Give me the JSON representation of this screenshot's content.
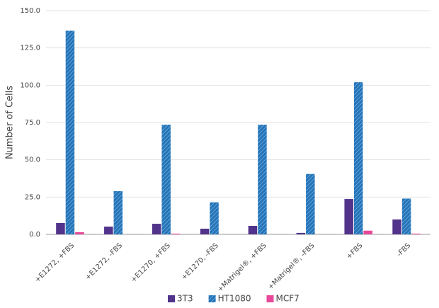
{
  "chart_data": {
    "type": "bar",
    "y_label": "Number of Cells",
    "categories": [
      "+E1272, +FBS",
      "+E1272, -FBS",
      "+E1270, +FBS",
      "+E1270, -FBS",
      "+Matrigel®, +FBS",
      "+Matrigel®, -FBS",
      "+FBS",
      "-FBS"
    ],
    "series": [
      {
        "name": "3T3",
        "color": "#51338b",
        "values": [
          7.6,
          5.2,
          7.1,
          3.8,
          5.7,
          1.0,
          23.7,
          10.0
        ]
      },
      {
        "name": "HT1080",
        "color": "#2474b8",
        "pattern": "hatch",
        "values": [
          136.5,
          29,
          73.5,
          21.5,
          73.5,
          40.5,
          102,
          24
        ]
      },
      {
        "name": "MCF7",
        "color": "#e8489a",
        "values": [
          1.5,
          0,
          0.5,
          0,
          0,
          0,
          2.5,
          0.5
        ]
      }
    ],
    "ylim": [
      0,
      150
    ],
    "yticks": [
      {
        "value": 0,
        "label": "0.0"
      },
      {
        "value": 25,
        "label": "25.0"
      },
      {
        "value": 50,
        "label": "50.0"
      },
      {
        "value": 75,
        "label": "75.0"
      },
      {
        "value": 100,
        "label": "100.0"
      },
      {
        "value": 125,
        "label": "125.0"
      },
      {
        "value": 150,
        "label": "150.0"
      }
    ],
    "grid": true,
    "legend": "bottom"
  }
}
